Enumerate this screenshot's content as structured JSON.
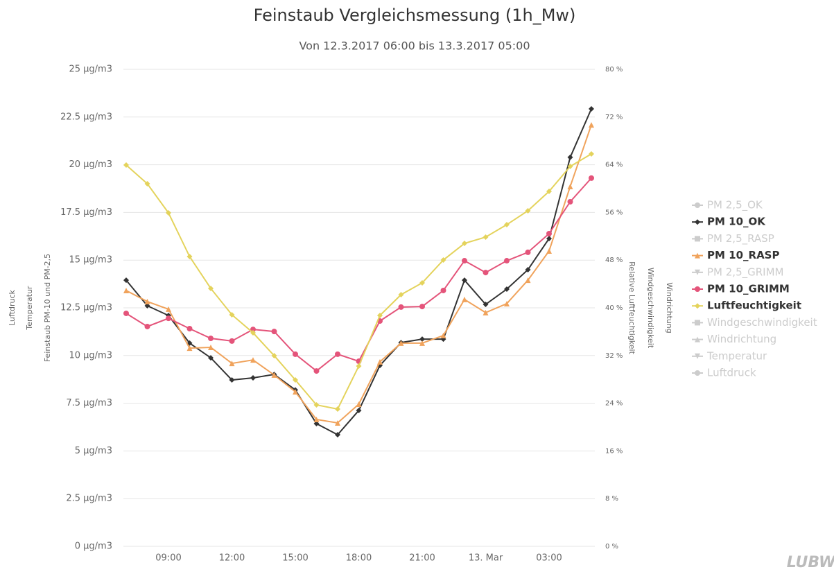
{
  "chart_data": {
    "type": "line",
    "title": "Feinstaub Vergleichsmessung (1h_Mw)",
    "subtitle": "Von 12.3.2017 06:00 bis 13.3.2017 05:00",
    "y_axis_titles": [
      "Luftdruck",
      "Temperatur",
      "Feinstaub PM-10 und PM-2,5"
    ],
    "y2_axis_titles": [
      "Relative Luftfeuchtigkeit",
      "Windgeschwindigkeit",
      "Windrichtung"
    ],
    "logo": "LUBW",
    "categories": [
      null,
      null,
      "09:00",
      null,
      null,
      "12:00",
      null,
      null,
      "15:00",
      null,
      null,
      "18:00",
      null,
      null,
      "21:00",
      null,
      null,
      "13. Mar",
      null,
      null,
      "03:00",
      null,
      null
    ],
    "ylim": [
      0,
      25
    ],
    "yticks": [
      {
        "value": 0,
        "label": "0 µg/m3"
      },
      {
        "value": 2.5,
        "label": "2.5 µg/m3"
      },
      {
        "value": 5,
        "label": "5 µg/m3"
      },
      {
        "value": 7.5,
        "label": "7.5 µg/m3"
      },
      {
        "value": 10,
        "label": "10 µg/m3"
      },
      {
        "value": 12.5,
        "label": "12.5 µg/m3"
      },
      {
        "value": 15,
        "label": "15 µg/m3"
      },
      {
        "value": 17.5,
        "label": "17.5 µg/m3"
      },
      {
        "value": 20,
        "label": "20 µg/m3"
      },
      {
        "value": 22.5,
        "label": "22.5 µg/m3"
      },
      {
        "value": 25,
        "label": "25 µg/m3"
      }
    ],
    "y2lim": [
      0,
      80
    ],
    "y2ticks": [
      {
        "value": 0,
        "label": "0 %"
      },
      {
        "value": 8,
        "label": "8 %"
      },
      {
        "value": 16,
        "label": "16 %"
      },
      {
        "value": 24,
        "label": "24 %"
      },
      {
        "value": 32,
        "label": "32 %"
      },
      {
        "value": 40,
        "label": "40 %"
      },
      {
        "value": 48,
        "label": "48 %"
      },
      {
        "value": 56,
        "label": "56 %"
      },
      {
        "value": 64,
        "label": "64 %"
      },
      {
        "value": 72,
        "label": "72 %"
      },
      {
        "value": 80,
        "label": "80 %"
      }
    ],
    "grid": true,
    "legend": "right",
    "series": [
      {
        "name": "PM 2,5_OK",
        "color": "#cccccc",
        "marker": "circle",
        "visible": false
      },
      {
        "name": "PM 10_OK",
        "color": "#333333",
        "marker": "diamond",
        "visible": true,
        "values": [
          13.95,
          12.61,
          12.1,
          10.65,
          9.88,
          8.72,
          8.83,
          9.01,
          8.2,
          6.43,
          5.85,
          7.12,
          9.48,
          10.68,
          10.86,
          10.86,
          13.95,
          12.68,
          13.48,
          14.5,
          16.13,
          20.39,
          22.93
        ]
      },
      {
        "name": "PM 2,5_RASP",
        "color": "#cccccc",
        "marker": "square",
        "visible": false
      },
      {
        "name": "PM 10_RASP",
        "color": "#f0a35c",
        "marker": "triangle",
        "visible": true,
        "values": [
          13.41,
          12.83,
          12.43,
          10.39,
          10.43,
          9.59,
          9.77,
          8.98,
          8.1,
          6.65,
          6.47,
          7.45,
          9.67,
          10.65,
          10.65,
          11.05,
          12.94,
          12.25,
          12.72,
          13.95,
          15.48,
          18.86,
          22.09
        ]
      },
      {
        "name": "PM 2,5_GRIMM",
        "color": "#cccccc",
        "marker": "triangle-down",
        "visible": false
      },
      {
        "name": "PM 10_GRIMM",
        "color": "#e4547a",
        "marker": "circle",
        "visible": true,
        "values": [
          12.21,
          11.52,
          11.95,
          11.41,
          10.9,
          10.76,
          11.37,
          11.26,
          10.07,
          9.19,
          10.07,
          9.7,
          11.81,
          12.54,
          12.57,
          13.41,
          14.97,
          14.35,
          14.97,
          15.41,
          16.39,
          18.06,
          19.3
        ]
      },
      {
        "name": "Luftfeuchtigkeit",
        "color": "#e4d35c",
        "marker": "diamond",
        "visible": true,
        "axis": "y2",
        "values": [
          63.95,
          60.81,
          55.93,
          48.6,
          43.26,
          38.84,
          35.81,
          31.98,
          27.91,
          23.72,
          23.02,
          30.23,
          38.72,
          42.21,
          44.19,
          48.02,
          50.81,
          51.86,
          53.95,
          56.28,
          59.53,
          63.72,
          65.81
        ]
      },
      {
        "name": "Windgeschwindigkeit",
        "color": "#cccccc",
        "marker": "square",
        "visible": false
      },
      {
        "name": "Windrichtung",
        "color": "#cccccc",
        "marker": "triangle",
        "visible": false
      },
      {
        "name": "Temperatur",
        "color": "#cccccc",
        "marker": "triangle-down",
        "visible": false
      },
      {
        "name": "Luftdruck",
        "color": "#cccccc",
        "marker": "circle",
        "visible": false
      }
    ]
  }
}
